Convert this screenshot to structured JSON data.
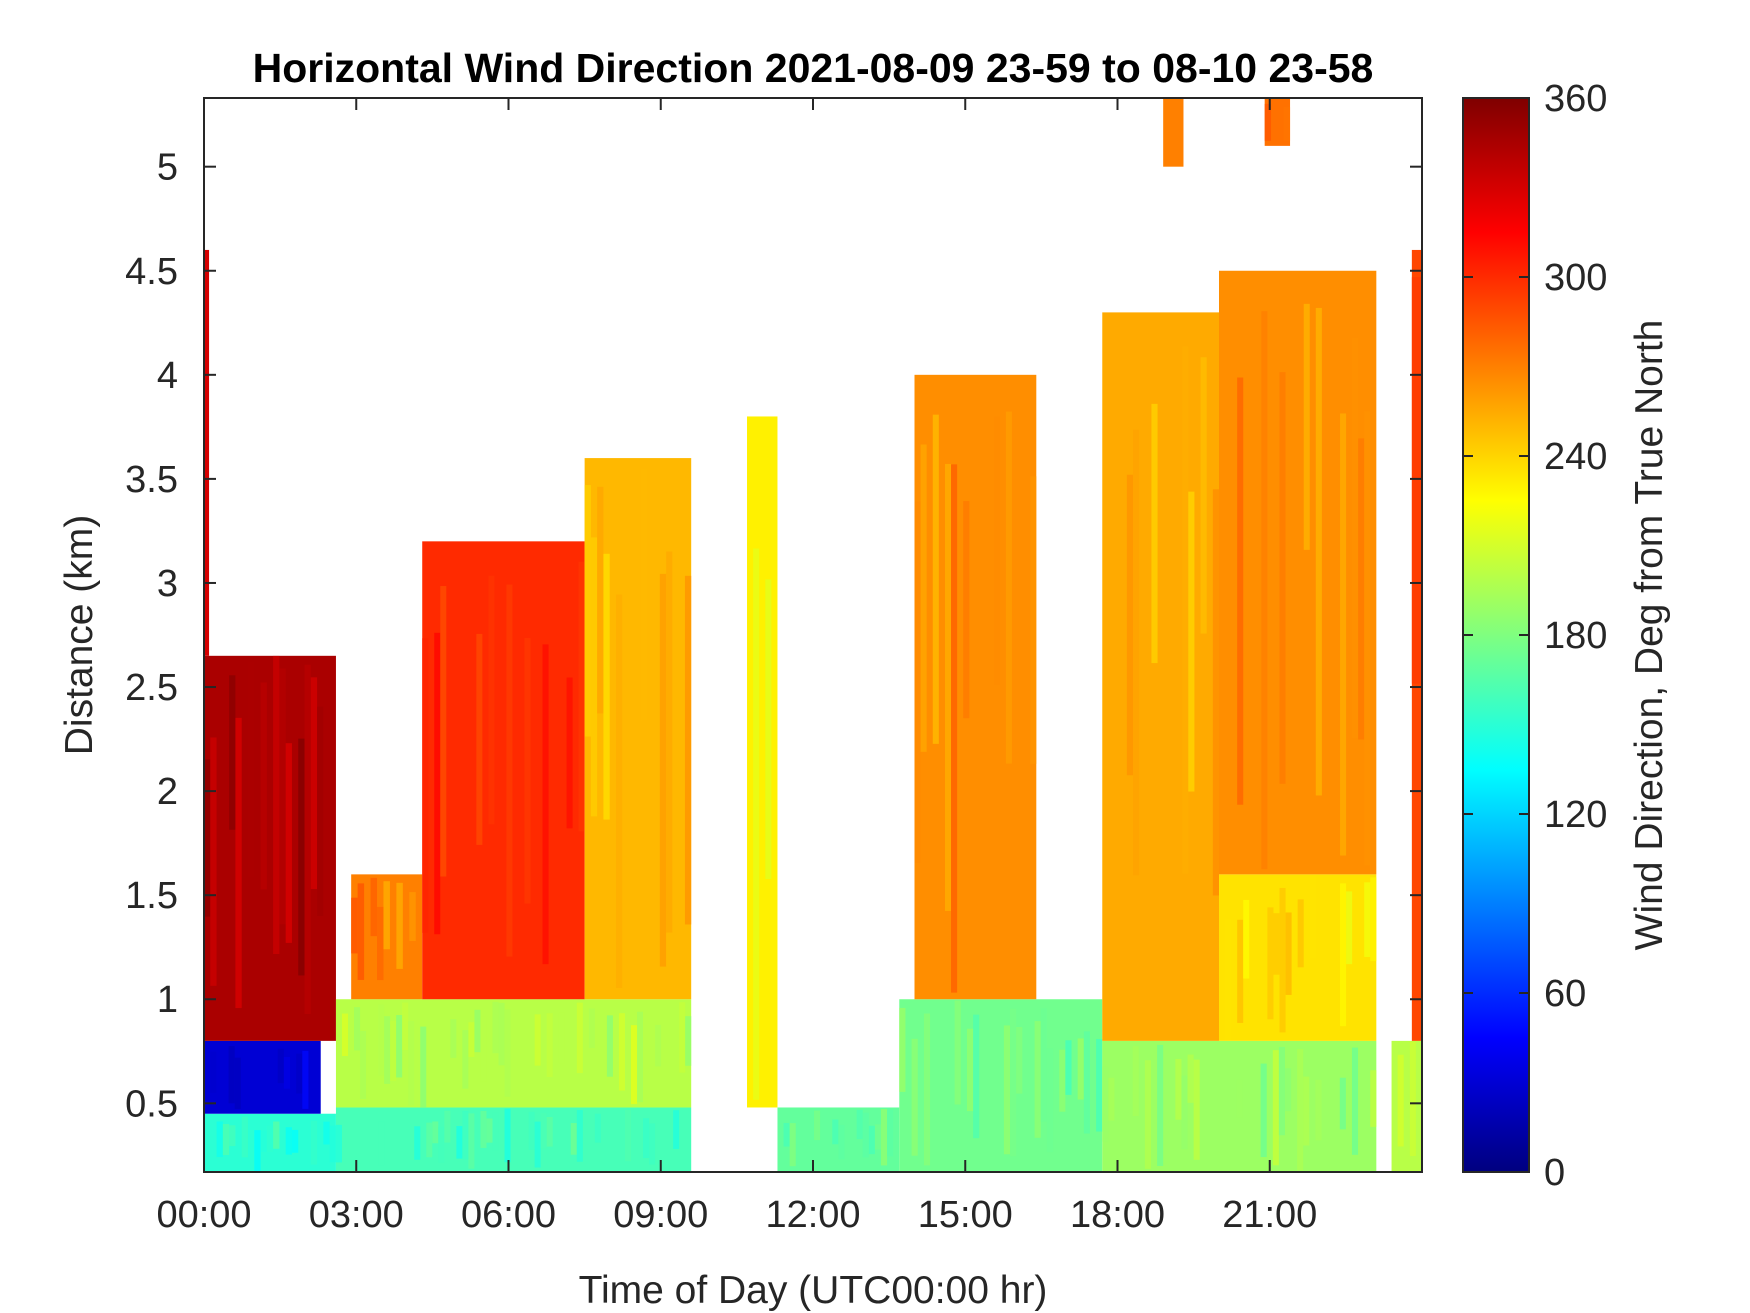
{
  "chart_data": {
    "type": "heatmap",
    "title": "Horizontal Wind Direction 2021-08-09 23-59 to 08-10 23-58",
    "xlabel": "Time of Day (UTC00:00 hr)",
    "ylabel": "Distance (km)",
    "x_ticks": [
      "00:00",
      "03:00",
      "06:00",
      "09:00",
      "12:00",
      "15:00",
      "18:00",
      "21:00"
    ],
    "x_tick_values": [
      0,
      3,
      6,
      9,
      12,
      15,
      18,
      21
    ],
    "xlim": [
      0,
      24
    ],
    "y_ticks": [
      "0.5",
      "1",
      "1.5",
      "2",
      "2.5",
      "3",
      "3.5",
      "4",
      "4.5",
      "5"
    ],
    "y_tick_values": [
      0.5,
      1,
      1.5,
      2,
      2.5,
      3,
      3.5,
      4,
      4.5,
      5
    ],
    "ylim": [
      0.17,
      5.33
    ],
    "colorbar": {
      "label": "Wind Direction, Deg from True North",
      "colormap": "jet",
      "ticks": [
        "0",
        "60",
        "120",
        "180",
        "240",
        "300",
        "360"
      ],
      "tick_values": [
        0,
        60,
        120,
        180,
        240,
        300,
        360
      ],
      "range": [
        0,
        360
      ]
    },
    "grid": false,
    "value_regions_deg": [
      {
        "t": [
          0.0,
          2.6
        ],
        "z": [
          0.17,
          0.45
        ],
        "dir": 150
      },
      {
        "t": [
          0.0,
          2.3
        ],
        "z": [
          0.45,
          0.8
        ],
        "dir": 30
      },
      {
        "t": [
          0.0,
          2.6
        ],
        "z": [
          0.8,
          2.65
        ],
        "dir": 345
      },
      {
        "t": [
          0.0,
          0.1
        ],
        "z": [
          2.65,
          4.6
        ],
        "dir": 330
      },
      {
        "t": [
          2.6,
          9.6
        ],
        "z": [
          0.17,
          0.48
        ],
        "dir": 160
      },
      {
        "t": [
          2.6,
          9.6
        ],
        "z": [
          0.48,
          1.0
        ],
        "dir": 200
      },
      {
        "t": [
          2.9,
          4.3
        ],
        "z": [
          1.0,
          1.6
        ],
        "dir": 270
      },
      {
        "t": [
          4.3,
          7.5
        ],
        "z": [
          1.0,
          3.2
        ],
        "dir": 300
      },
      {
        "t": [
          7.5,
          9.6
        ],
        "z": [
          1.0,
          3.6
        ],
        "dir": 250
      },
      {
        "t": [
          10.7,
          11.3
        ],
        "z": [
          0.48,
          3.8
        ],
        "dir": 230
      },
      {
        "t": [
          11.3,
          13.7
        ],
        "z": [
          0.17,
          0.48
        ],
        "dir": 170
      },
      {
        "t": [
          13.7,
          17.7
        ],
        "z": [
          0.17,
          1.0
        ],
        "dir": 175
      },
      {
        "t": [
          14.0,
          16.4
        ],
        "z": [
          1.0,
          4.0
        ],
        "dir": 265
      },
      {
        "t": [
          17.7,
          23.1
        ],
        "z": [
          0.17,
          0.8
        ],
        "dir": 190
      },
      {
        "t": [
          17.7,
          20.0
        ],
        "z": [
          0.8,
          4.3
        ],
        "dir": 255
      },
      {
        "t": [
          20.0,
          23.1
        ],
        "z": [
          0.8,
          1.6
        ],
        "dir": 235
      },
      {
        "t": [
          20.0,
          23.1
        ],
        "z": [
          1.6,
          4.5
        ],
        "dir": 265
      },
      {
        "t": [
          18.9,
          19.3
        ],
        "z": [
          5.0,
          5.33
        ],
        "dir": 270
      },
      {
        "t": [
          20.9,
          21.4
        ],
        "z": [
          5.1,
          5.33
        ],
        "dir": 275
      },
      {
        "t": [
          23.4,
          24.0
        ],
        "z": [
          0.17,
          0.8
        ],
        "dir": 200
      },
      {
        "t": [
          23.8,
          24.0
        ],
        "z": [
          0.8,
          4.6
        ],
        "dir": 290
      }
    ]
  }
}
